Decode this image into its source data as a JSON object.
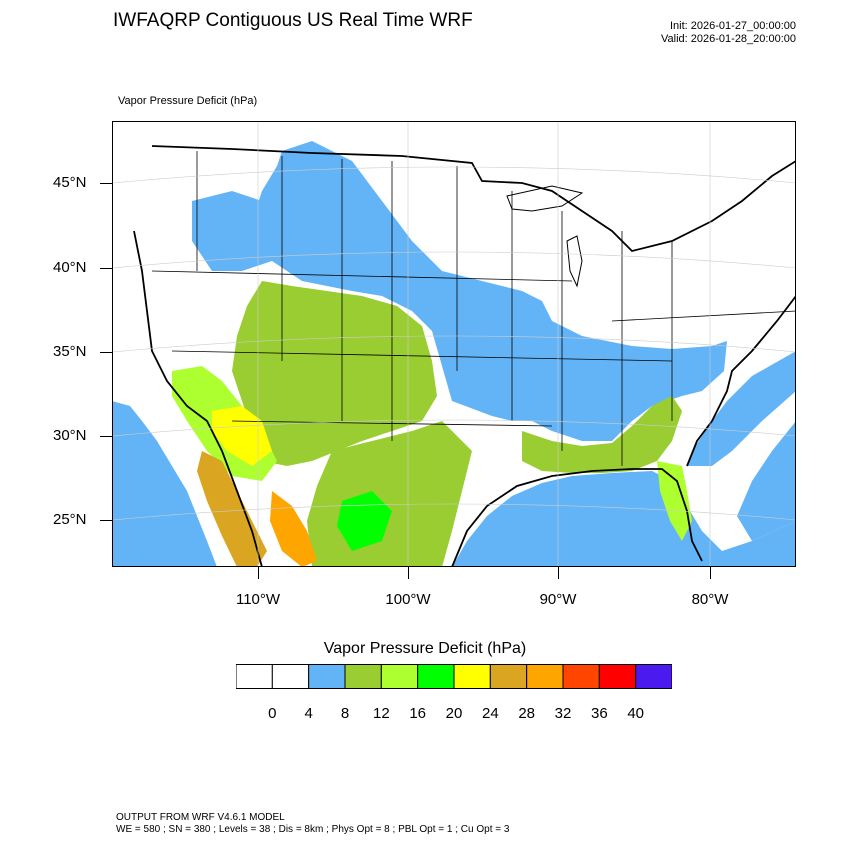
{
  "title": "IWFAQRP Contiguous US Real Time WRF",
  "init": "Init: 2026-01-27_00:00:00",
  "valid": "Valid: 2026-01-28_20:00:00",
  "field_label": "Vapor Pressure Deficit   (hPa)",
  "lat_labels": [
    "45°N",
    "40°N",
    "35°N",
    "30°N",
    "25°N"
  ],
  "lon_labels": [
    "110°W",
    "100°W",
    "90°W",
    "80°W"
  ],
  "legend": {
    "title": "Vapor Pressure Deficit  (hPa)",
    "ticks": [
      "0",
      "4",
      "8",
      "12",
      "16",
      "20",
      "24",
      "28",
      "32",
      "36",
      "40"
    ],
    "colors": [
      "#ffffff",
      "#ffffff",
      "#63b4f7",
      "#9acd32",
      "#adff2f",
      "#00ff00",
      "#ffff00",
      "#daa520",
      "#ffa500",
      "#ff4500",
      "#ff0000",
      "#4a1aef"
    ]
  },
  "colors": {
    "ocean": "#63b4f7",
    "low": "#63b4f7",
    "mid": "#9acd32",
    "mid2": "#adff2f",
    "high": "#daa520",
    "higher": "#ffa500",
    "green": "#00ff00",
    "yellow": "#ffff00"
  },
  "footer": {
    "line1": "OUTPUT FROM WRF V4.6.1 MODEL",
    "line2": "WE = 580 ; SN = 380 ; Levels = 38 ; Dis = 8km ; Phys Opt = 8 ; PBL Opt = 1 ; Cu Opt = 3"
  }
}
